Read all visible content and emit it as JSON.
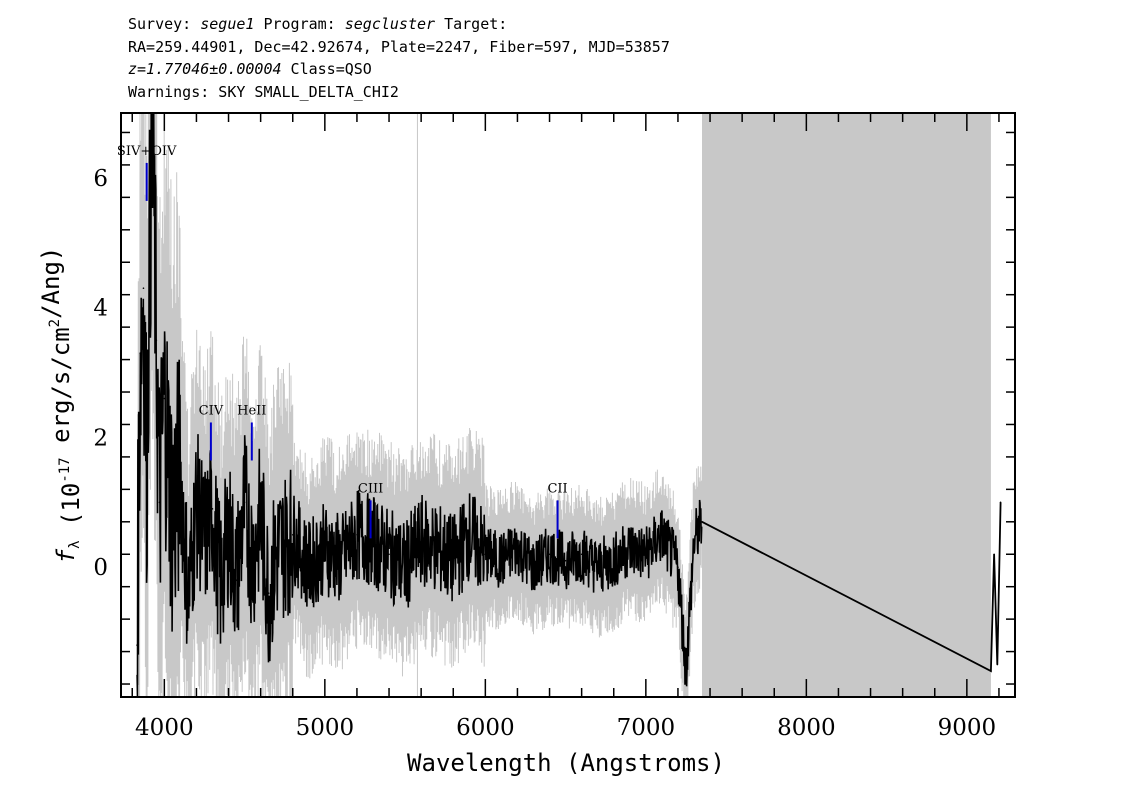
{
  "header": {
    "survey_prefix": "Survey: ",
    "survey": "segue1",
    "program_prefix": " Program: ",
    "program": "segcluster",
    "target_suffix": " Target:",
    "line2": "RA=259.44901, Dec=42.92674, Plate=2247, Fiber=597, MJD=53857",
    "redshift": "z=1.77046±0.00004",
    "class_text": " Class=QSO",
    "warnings": "Warnings: SKY SMALL_DELTA_CHI2"
  },
  "chart_data": {
    "type": "line",
    "xlabel": "Wavelength (Angstroms)",
    "ylabel": "f_λ (10^-17 erg/s/cm^2/Ang)",
    "xlim": [
      3730,
      9300
    ],
    "ylim": [
      -2.0,
      7.0
    ],
    "xticks": [
      4000,
      5000,
      6000,
      7000,
      8000,
      9000
    ],
    "yticks": [
      0,
      2,
      4,
      6
    ],
    "masked_region": [
      7350,
      9150
    ],
    "sky_line": 5577,
    "colors": {
      "flux": "#000000",
      "error": "#c8c8c8",
      "mask": "#c8c8c8",
      "emission_line": "#0000cc"
    },
    "series": [
      {
        "name": "flux",
        "x": [
          3830,
          3850,
          3870,
          3890,
          3910,
          3930,
          3950,
          3970,
          4000,
          4050,
          4100,
          4150,
          4200,
          4250,
          4300,
          4350,
          4400,
          4450,
          4500,
          4550,
          4600,
          4650,
          4700,
          4800,
          4900,
          5000,
          5100,
          5200,
          5300,
          5400,
          5500,
          5600,
          5700,
          5800,
          5900,
          6000,
          6100,
          6200,
          6300,
          6400,
          6500,
          6600,
          6700,
          6800,
          6900,
          7000,
          7100,
          7200,
          7250,
          7300,
          7350,
          9150,
          9170,
          9190,
          9210
        ],
        "y": [
          -1.2,
          3.3,
          4.3,
          1.5,
          5.2,
          6.3,
          3.5,
          1.0,
          2.6,
          0.8,
          1.5,
          -0.5,
          1.0,
          0.4,
          0.9,
          -0.3,
          0.6,
          -0.2,
          1.0,
          0.1,
          0.8,
          -0.4,
          0.2,
          0.5,
          0.0,
          0.3,
          0.1,
          0.5,
          0.4,
          0.2,
          0.0,
          0.4,
          0.3,
          0.1,
          0.5,
          0.2,
          0.1,
          0.3,
          0.0,
          0.2,
          0.1,
          0.2,
          0.0,
          0.1,
          0.3,
          0.2,
          0.5,
          0.0,
          -1.6,
          0.4,
          0.7,
          -1.6,
          0.2,
          -1.5,
          1.0
        ]
      }
    ],
    "emission_lines": [
      {
        "label": "SIV+OIV",
        "x": 3890,
        "flux": 6.2
      },
      {
        "label": "CIV",
        "x": 4290,
        "flux": 2.2
      },
      {
        "label": "HeII",
        "x": 4545,
        "flux": 2.2
      },
      {
        "label": "CIII",
        "x": 5285,
        "flux": 1.0
      },
      {
        "label": "CII",
        "x": 6450,
        "flux": 1.0
      }
    ]
  }
}
